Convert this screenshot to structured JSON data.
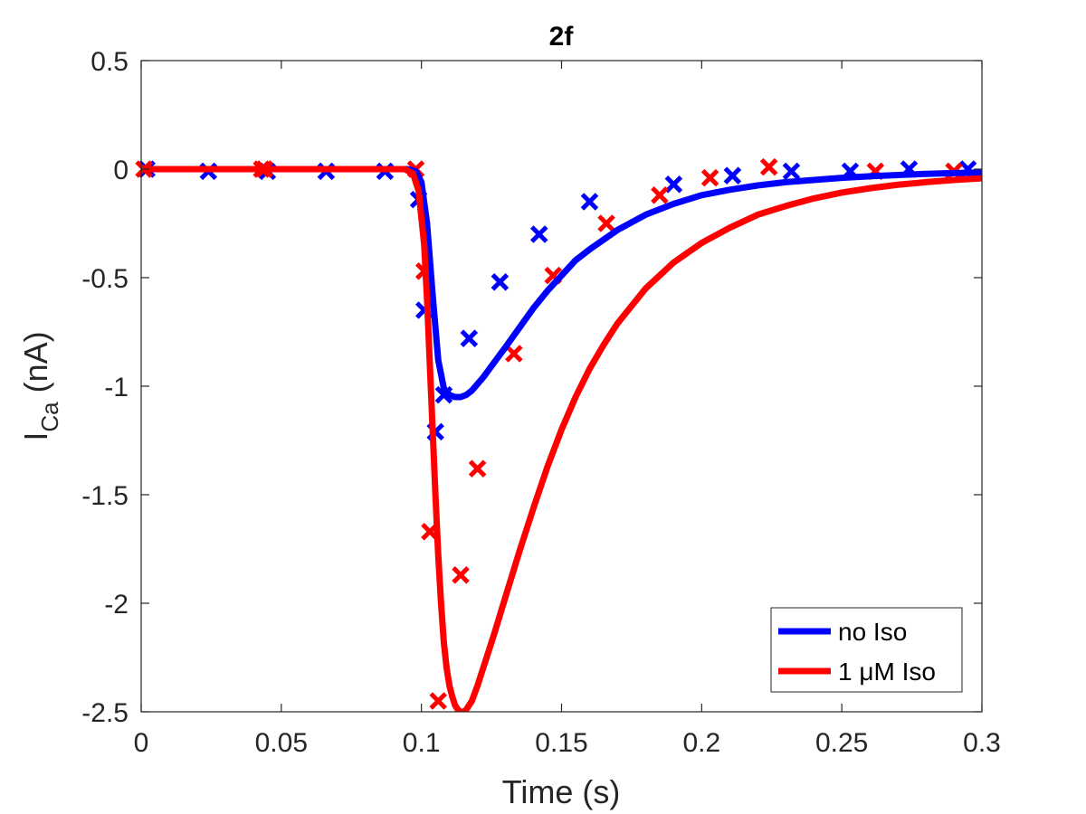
{
  "chart_data": {
    "type": "line",
    "title": "2f",
    "xlabel": "Time (s)",
    "ylabel": {
      "main": "I",
      "subscript": "Ca",
      "unit": " (nA)"
    },
    "xlim": [
      0,
      0.3
    ],
    "ylim": [
      -2.5,
      0.5
    ],
    "xticks": [
      0,
      0.05,
      0.1,
      0.15,
      0.2,
      0.25,
      0.3
    ],
    "xtick_labels": [
      "0",
      "0.05",
      "0.1",
      "0.15",
      "0.2",
      "0.25",
      "0.3"
    ],
    "yticks": [
      0.5,
      0,
      -0.5,
      -1,
      -1.5,
      -2,
      -2.5
    ],
    "ytick_labels": [
      "0.5",
      "0",
      "-0.5",
      "-1",
      "-1.5",
      "-2",
      "-2.5"
    ],
    "grid": false,
    "legend_position": "bottom-right",
    "series": [
      {
        "name": "no Iso",
        "color": "#0000ff",
        "line": {
          "x": [
            0,
            0.095,
            0.098,
            0.1,
            0.102,
            0.104,
            0.106,
            0.108,
            0.11,
            0.112,
            0.114,
            0.116,
            0.118,
            0.122,
            0.126,
            0.13,
            0.135,
            0.14,
            0.145,
            0.15,
            0.155,
            0.16,
            0.17,
            0.18,
            0.19,
            0.2,
            0.21,
            0.22,
            0.23,
            0.24,
            0.25,
            0.26,
            0.27,
            0.28,
            0.29,
            0.3
          ],
          "y": [
            0,
            0,
            -0.01,
            -0.06,
            -0.25,
            -0.58,
            -0.88,
            -1.01,
            -1.04,
            -1.05,
            -1.05,
            -1.04,
            -1.02,
            -0.96,
            -0.89,
            -0.82,
            -0.73,
            -0.64,
            -0.56,
            -0.49,
            -0.42,
            -0.37,
            -0.28,
            -0.21,
            -0.16,
            -0.12,
            -0.095,
            -0.075,
            -0.06,
            -0.05,
            -0.04,
            -0.033,
            -0.027,
            -0.022,
            -0.018,
            -0.015
          ]
        },
        "markers": {
          "x": [
            0.002,
            0.024,
            0.045,
            0.066,
            0.087,
            0.099,
            0.101,
            0.105,
            0.108,
            0.117,
            0.128,
            0.142,
            0.16,
            0.19,
            0.211,
            0.232,
            0.253,
            0.274,
            0.295
          ],
          "y": [
            0,
            -0.01,
            -0.01,
            -0.01,
            -0.01,
            -0.14,
            -0.65,
            -1.21,
            -1.04,
            -0.78,
            -0.52,
            -0.3,
            -0.15,
            -0.07,
            -0.03,
            -0.01,
            -0.01,
            0,
            0
          ]
        }
      },
      {
        "name": "1 μM Iso",
        "color": "#ff0000",
        "line": {
          "x": [
            0,
            0.094,
            0.097,
            0.099,
            0.101,
            0.102,
            0.103,
            0.104,
            0.105,
            0.106,
            0.107,
            0.108,
            0.109,
            0.11,
            0.111,
            0.112,
            0.113,
            0.114,
            0.115,
            0.116,
            0.117,
            0.118,
            0.12,
            0.123,
            0.126,
            0.13,
            0.135,
            0.14,
            0.145,
            0.15,
            0.155,
            0.16,
            0.165,
            0.17,
            0.18,
            0.19,
            0.2,
            0.21,
            0.22,
            0.23,
            0.24,
            0.25,
            0.26,
            0.27,
            0.28,
            0.29,
            0.3
          ],
          "y": [
            0,
            0,
            -0.02,
            -0.1,
            -0.35,
            -0.6,
            -0.9,
            -1.2,
            -1.5,
            -1.78,
            -2.0,
            -2.18,
            -2.3,
            -2.38,
            -2.43,
            -2.47,
            -2.49,
            -2.5,
            -2.5,
            -2.49,
            -2.47,
            -2.45,
            -2.38,
            -2.26,
            -2.14,
            -1.97,
            -1.76,
            -1.56,
            -1.37,
            -1.2,
            -1.05,
            -0.92,
            -0.81,
            -0.71,
            -0.55,
            -0.43,
            -0.34,
            -0.27,
            -0.21,
            -0.17,
            -0.135,
            -0.108,
            -0.088,
            -0.072,
            -0.06,
            -0.05,
            -0.042
          ]
        },
        "markers": {
          "x": [
            0.001,
            0.043,
            0.044,
            0.098,
            0.101,
            0.103,
            0.106,
            0.114,
            0.12,
            0.133,
            0.147,
            0.166,
            0.185,
            0.203,
            0.224,
            0.262,
            0.29
          ],
          "y": [
            0,
            0,
            0,
            0,
            -0.47,
            -1.67,
            -2.45,
            -1.87,
            -1.38,
            -0.85,
            -0.49,
            -0.25,
            -0.12,
            -0.04,
            0.01,
            -0.01,
            -0.01
          ]
        }
      }
    ]
  }
}
